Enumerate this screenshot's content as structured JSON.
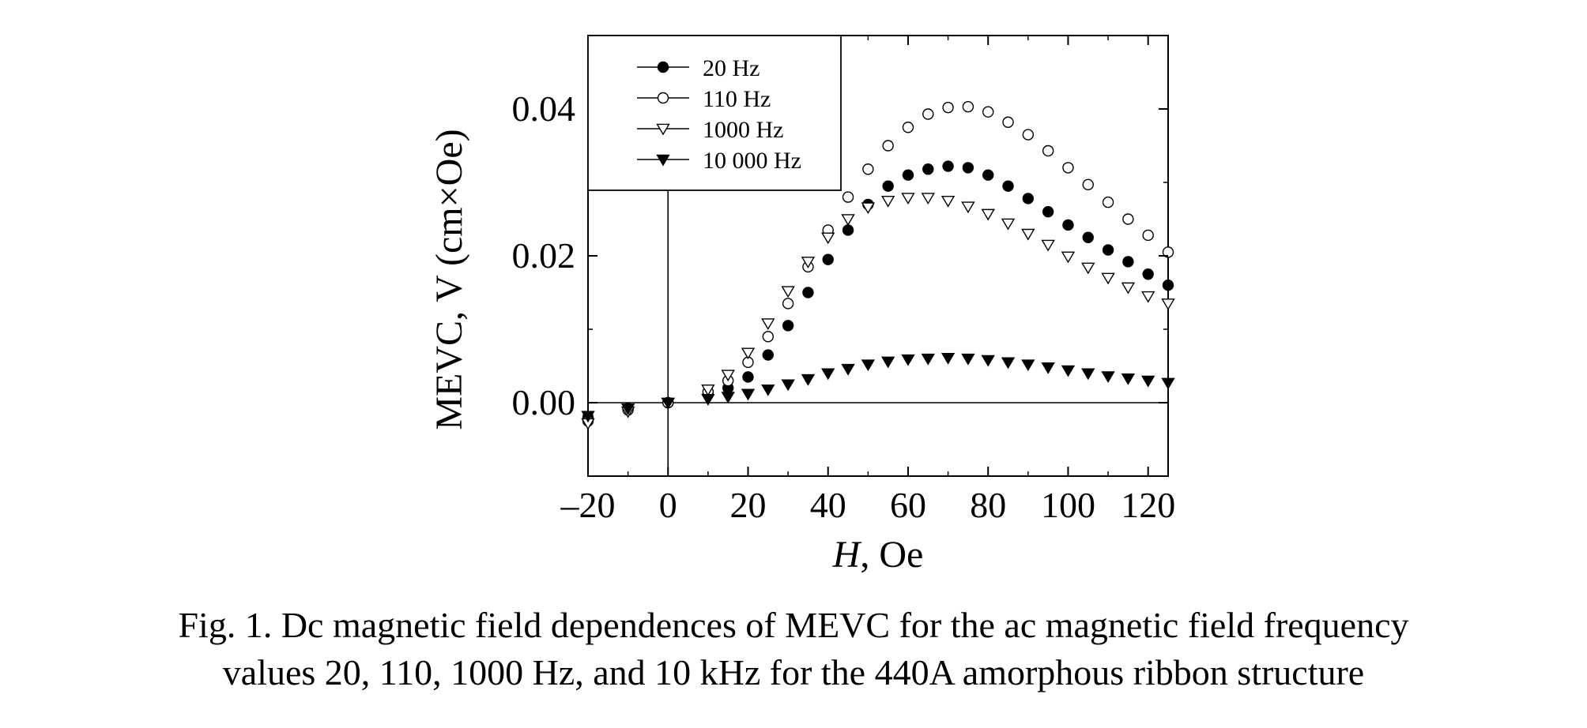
{
  "caption": {
    "line1": "Fig. 1. Dc magnetic field dependences of MEVC for the ac magnetic field frequency",
    "line2": "values 20, 110, 1000 Hz, and 10 kHz for the 440A amorphous ribbon structure"
  },
  "chart_data": {
    "type": "scatter",
    "xlabel_italic": "H",
    "xlabel_rest": ", Oe",
    "ylabel": "MEVC, V (cm×Oe)",
    "xlim": [
      -20,
      125
    ],
    "ylim": [
      -0.01,
      0.05
    ],
    "x_ticks": [
      {
        "value": -20,
        "label": "–20"
      },
      {
        "value": 0,
        "label": "0"
      },
      {
        "value": 20,
        "label": "20"
      },
      {
        "value": 40,
        "label": "40"
      },
      {
        "value": 60,
        "label": "60"
      },
      {
        "value": 80,
        "label": "80"
      },
      {
        "value": 100,
        "label": "100"
      },
      {
        "value": 120,
        "label": "120"
      }
    ],
    "y_ticks": [
      {
        "value": 0.0,
        "label": "0.00"
      },
      {
        "value": 0.02,
        "label": "0.02"
      },
      {
        "value": 0.04,
        "label": "0.04"
      }
    ],
    "reference_lines": {
      "x": 0,
      "y": 0
    },
    "legend_position": "top-left",
    "series": [
      {
        "name": "20 Hz",
        "marker": "filled-circle",
        "x": [
          -20,
          -10,
          0,
          10,
          15,
          20,
          25,
          30,
          35,
          40,
          45,
          50,
          55,
          60,
          65,
          70,
          75,
          80,
          85,
          90,
          95,
          100,
          105,
          110,
          115,
          120,
          125
        ],
        "values": [
          -0.002,
          -0.0008,
          0.0,
          0.0012,
          0.002,
          0.0035,
          0.0065,
          0.0105,
          0.015,
          0.0195,
          0.0235,
          0.027,
          0.0295,
          0.031,
          0.0318,
          0.0322,
          0.032,
          0.031,
          0.0295,
          0.0278,
          0.026,
          0.0242,
          0.0225,
          0.0208,
          0.0192,
          0.0175,
          0.016
        ]
      },
      {
        "name": "110 Hz",
        "marker": "open-circle",
        "x": [
          -20,
          -10,
          0,
          10,
          15,
          20,
          25,
          30,
          35,
          40,
          45,
          50,
          55,
          60,
          65,
          70,
          75,
          80,
          85,
          90,
          95,
          100,
          105,
          110,
          115,
          120,
          125
        ],
        "values": [
          -0.0025,
          -0.001,
          0.0,
          0.0015,
          0.003,
          0.0055,
          0.009,
          0.0135,
          0.0185,
          0.0235,
          0.028,
          0.0318,
          0.035,
          0.0375,
          0.0393,
          0.0402,
          0.0403,
          0.0396,
          0.0382,
          0.0365,
          0.0343,
          0.032,
          0.0297,
          0.0273,
          0.025,
          0.0228,
          0.0205
        ]
      },
      {
        "name": "1000 Hz",
        "marker": "open-triangle-down",
        "x": [
          -20,
          -10,
          0,
          10,
          15,
          20,
          25,
          30,
          35,
          40,
          45,
          50,
          55,
          60,
          65,
          70,
          75,
          80,
          85,
          90,
          95,
          100,
          105,
          110,
          115,
          120,
          125
        ],
        "values": [
          -0.0028,
          -0.0012,
          0.0,
          0.0018,
          0.0038,
          0.0068,
          0.0108,
          0.0152,
          0.0192,
          0.0225,
          0.025,
          0.0266,
          0.0275,
          0.0279,
          0.0279,
          0.0275,
          0.0267,
          0.0257,
          0.0244,
          0.023,
          0.0215,
          0.0199,
          0.0184,
          0.017,
          0.0157,
          0.0145,
          0.0135
        ]
      },
      {
        "name": "10 000 Hz",
        "marker": "filled-triangle-down",
        "x": [
          -20,
          -10,
          0,
          10,
          15,
          20,
          25,
          30,
          35,
          40,
          45,
          50,
          55,
          60,
          65,
          70,
          75,
          80,
          85,
          90,
          95,
          100,
          105,
          110,
          115,
          120,
          125
        ],
        "values": [
          -0.0018,
          -0.0008,
          0.0,
          0.0005,
          0.0008,
          0.0012,
          0.0018,
          0.0025,
          0.0032,
          0.004,
          0.0046,
          0.0052,
          0.0056,
          0.0059,
          0.006,
          0.0061,
          0.006,
          0.0058,
          0.0055,
          0.0052,
          0.0048,
          0.0044,
          0.004,
          0.0036,
          0.0033,
          0.003,
          0.0027
        ]
      }
    ]
  }
}
